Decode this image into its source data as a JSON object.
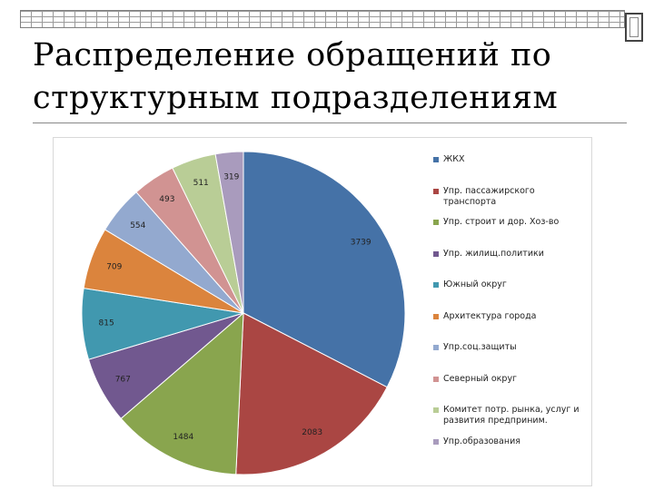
{
  "title": {
    "line1": "Распределение обращений по",
    "line2": "структурным подразделениям"
  },
  "chart_data": {
    "type": "pie",
    "title": "",
    "legend_position": "right",
    "slices": [
      {
        "label": "ЖКХ",
        "value": 3739,
        "color": "#4572a7"
      },
      {
        "label": "Упр. пассажирского транспорта",
        "value": 2083,
        "color": "#aa4643"
      },
      {
        "label": "Упр. строит и дор. Хоз-во",
        "value": 1484,
        "color": "#89a54e"
      },
      {
        "label": "Упр. жилищ.политики",
        "value": 767,
        "color": "#71588f"
      },
      {
        "label": "Южный округ",
        "value": 815,
        "color": "#4198af"
      },
      {
        "label": "Архитектура города",
        "value": 709,
        "color": "#db843d"
      },
      {
        "label": "Упр.соц.защиты",
        "value": 554,
        "color": "#93a9cf"
      },
      {
        "label": "Северный округ",
        "value": 493,
        "color": "#d19392"
      },
      {
        "label": "Комитет потр. рынка, услуг и развития предприним.",
        "value": 511,
        "color": "#b9cd96"
      },
      {
        "label": "Упр.образования",
        "value": 319,
        "color": "#a99bbd"
      }
    ]
  }
}
